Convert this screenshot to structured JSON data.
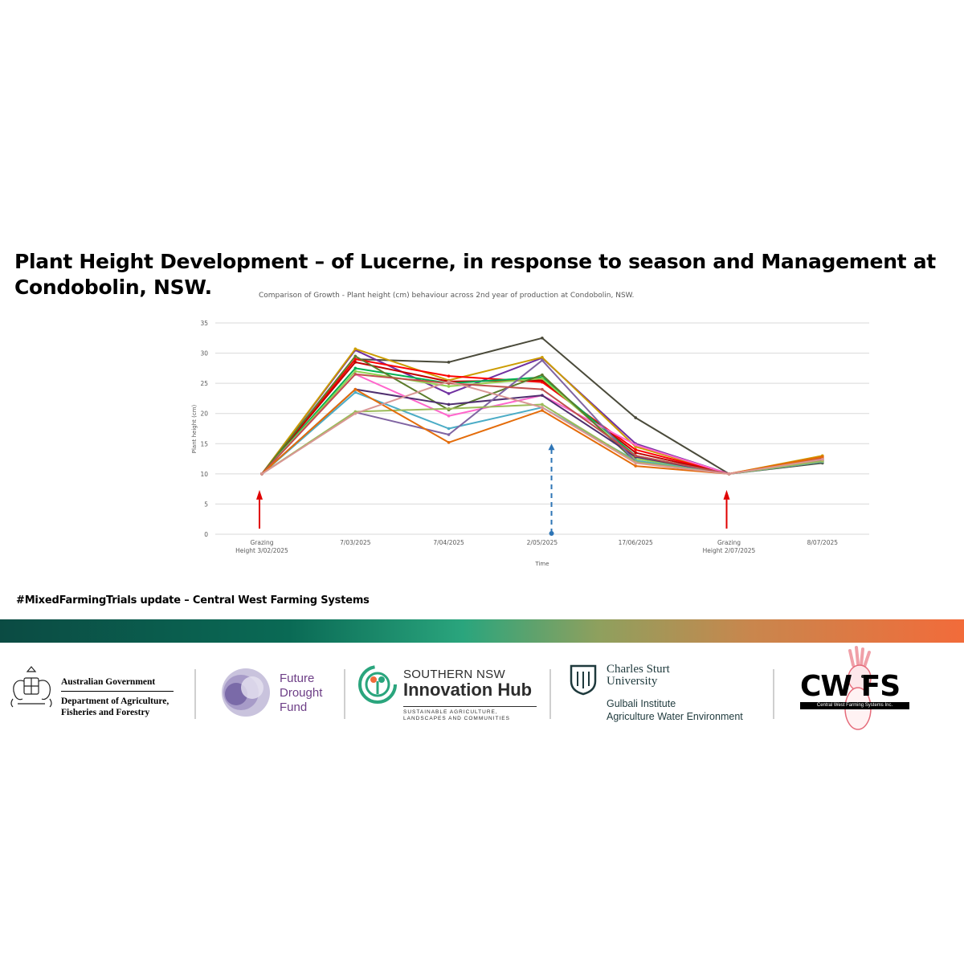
{
  "title": "Plant Height Development – of Lucerne, in response to season and Management at Condobolin, NSW.",
  "hashtag": "#MixedFarmingTrials update – Central West Farming Systems",
  "chart_data": {
    "type": "line",
    "title": "Comparison of Growth - Plant height (cm) behaviour across 2nd year of production at Condobolin, NSW.",
    "xlabel": "Time",
    "ylabel": "Plant height (cm)",
    "ylim": [
      0,
      35
    ],
    "yticks": [
      0,
      5,
      10,
      15,
      20,
      25,
      30,
      35
    ],
    "categories": [
      [
        "Grazing",
        "Height 3/02/2025"
      ],
      [
        "7/03/2025"
      ],
      [
        "7/04/2025"
      ],
      [
        "2/05/2025"
      ],
      [
        "17/06/2025"
      ],
      [
        "Grazing",
        "Height 2/07/2025"
      ],
      [
        "8/07/2025"
      ]
    ],
    "series": [
      {
        "color": "#4a4a3a",
        "values": [
          10,
          29.0,
          28.5,
          32.5,
          19.3,
          10,
          11.8
        ]
      },
      {
        "color": "#7030a0",
        "values": [
          10,
          30.5,
          23.3,
          29.2,
          15.0,
          10,
          12.3
        ]
      },
      {
        "color": "#cc9c00",
        "values": [
          10,
          30.7,
          25.5,
          29.3,
          14.5,
          10,
          13.0
        ]
      },
      {
        "color": "#ff0000",
        "values": [
          10,
          29.0,
          26.2,
          25.2,
          14.0,
          10,
          12.8
        ]
      },
      {
        "color": "#c00000",
        "values": [
          10,
          28.5,
          25.3,
          25.5,
          13.5,
          10,
          12.5
        ]
      },
      {
        "color": "#00b050",
        "values": [
          10,
          27.5,
          25.0,
          26.0,
          13.0,
          10,
          12.2
        ]
      },
      {
        "color": "#92d050",
        "values": [
          10,
          27.0,
          24.5,
          25.8,
          12.5,
          10,
          12.0
        ]
      },
      {
        "color": "#ff66cc",
        "values": [
          10,
          26.5,
          19.6,
          23.0,
          14.8,
          10,
          12.4
        ]
      },
      {
        "color": "#5c7c2c",
        "values": [
          10,
          29.5,
          20.6,
          26.4,
          12.0,
          10,
          12.1
        ]
      },
      {
        "color": "#4f2f6f",
        "values": [
          10,
          24.0,
          21.5,
          23.0,
          12.8,
          10,
          12.3
        ]
      },
      {
        "color": "#4bacc6",
        "values": [
          10,
          23.5,
          17.5,
          21.0,
          12.2,
          10,
          12.0
        ]
      },
      {
        "color": "#8064a2",
        "values": [
          10,
          20.2,
          16.5,
          28.8,
          12.0,
          10,
          12.2
        ]
      },
      {
        "color": "#9bbb59",
        "values": [
          10,
          20.3,
          20.8,
          21.5,
          12.0,
          10,
          12.1
        ]
      },
      {
        "color": "#c0504d",
        "values": [
          10,
          26.5,
          25.0,
          24.0,
          13.0,
          10,
          12.6
        ]
      },
      {
        "color": "#e46c0a",
        "values": [
          10,
          24.0,
          15.2,
          20.5,
          11.3,
          10,
          12.8
        ]
      },
      {
        "color": "#d99694",
        "values": [
          10,
          20.0,
          25.3,
          21.0,
          11.8,
          10,
          12.4
        ]
      }
    ],
    "annotations": [
      {
        "kind": "solid-arrow",
        "color": "#e00000",
        "x_index": 0,
        "meaning": "grazing"
      },
      {
        "kind": "dashed-arrow",
        "color": "#2e75b6",
        "x_index": 3.1,
        "meaning": "management event"
      },
      {
        "kind": "solid-arrow",
        "color": "#e00000",
        "x_index": 5,
        "meaning": "grazing"
      }
    ]
  },
  "logos": {
    "gov": {
      "line1": "Australian Government",
      "line2": "Department of Agriculture,",
      "line3": "Fisheries and Forestry"
    },
    "fdf": {
      "line1": "Future",
      "line2": "Drought",
      "line3": "Fund"
    },
    "hub": {
      "small": "SOUTHERN NSW",
      "big": "Innovation Hub",
      "tag1": "SUSTAINABLE AGRICULTURE,",
      "tag2": "LANDSCAPES AND COMMUNITIES"
    },
    "csu": {
      "line1": "Charles Sturt",
      "line2": "University",
      "inst": "Gulbali Institute",
      "sub": "Agriculture Water Environment"
    },
    "cwfs": {
      "letters": "CW FS",
      "sub": "Central West Farming Systems Inc."
    },
    "colors": {
      "fdf_purple": "#6d3e86",
      "hub_green": "#2aa57d",
      "hub_orange": "#f26b3a",
      "csu_teal": "#1f3a3d"
    }
  }
}
